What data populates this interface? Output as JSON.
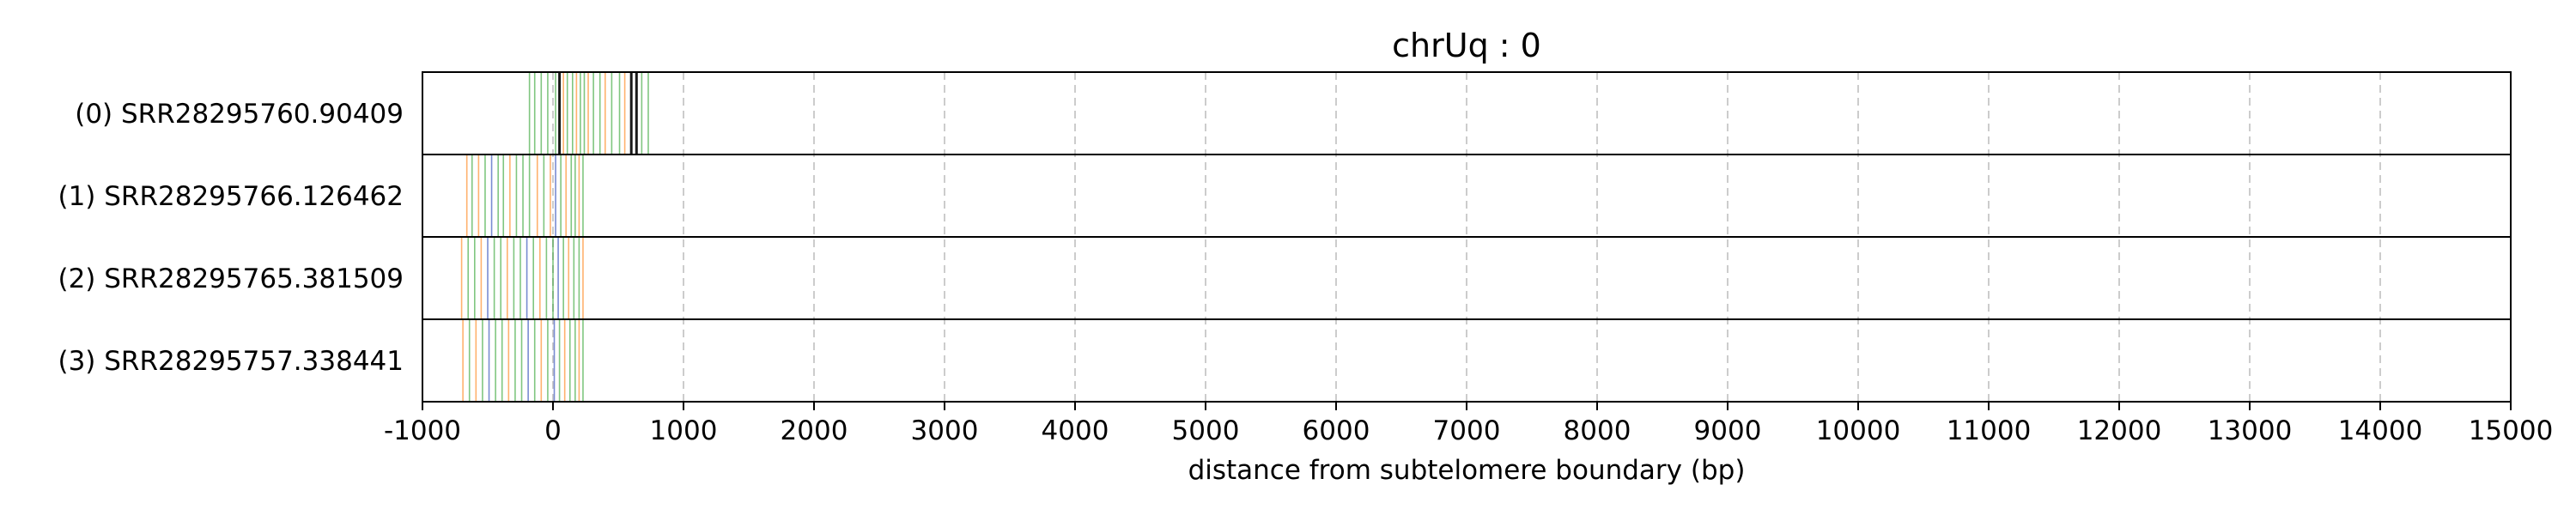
{
  "chart_data": {
    "type": "event-track",
    "title": "chrUq : 0",
    "xlabel": "distance from subtelomere boundary (bp)",
    "xlim": [
      -1000,
      15000
    ],
    "x_ticks": [
      -1000,
      0,
      1000,
      2000,
      3000,
      4000,
      5000,
      6000,
      7000,
      8000,
      9000,
      10000,
      11000,
      12000,
      13000,
      14000,
      15000
    ],
    "grid": "vertical dashed",
    "colors": {
      "green": "#2ca02c",
      "orange": "#ff7f0e",
      "blue": "#1f3fb4",
      "black": "#000000",
      "grid": "#cccccc"
    },
    "tracks": [
      {
        "label": "(0) SRR28295760.90409",
        "events": [
          {
            "x": -180,
            "c": "green"
          },
          {
            "x": -140,
            "c": "green"
          },
          {
            "x": -90,
            "c": "green"
          },
          {
            "x": -40,
            "c": "green"
          },
          {
            "x": 20,
            "c": "green"
          },
          {
            "x": 50,
            "c": "black"
          },
          {
            "x": 80,
            "c": "orange"
          },
          {
            "x": 110,
            "c": "green"
          },
          {
            "x": 150,
            "c": "green"
          },
          {
            "x": 180,
            "c": "orange"
          },
          {
            "x": 210,
            "c": "green"
          },
          {
            "x": 240,
            "c": "green"
          },
          {
            "x": 270,
            "c": "orange"
          },
          {
            "x": 310,
            "c": "green"
          },
          {
            "x": 360,
            "c": "green"
          },
          {
            "x": 400,
            "c": "orange"
          },
          {
            "x": 450,
            "c": "green"
          },
          {
            "x": 510,
            "c": "green"
          },
          {
            "x": 550,
            "c": "orange"
          },
          {
            "x": 600,
            "c": "black"
          },
          {
            "x": 640,
            "c": "black"
          },
          {
            "x": 680,
            "c": "green"
          },
          {
            "x": 730,
            "c": "green"
          }
        ]
      },
      {
        "label": "(1) SRR28295766.126462",
        "events": [
          {
            "x": -660,
            "c": "orange"
          },
          {
            "x": -620,
            "c": "green"
          },
          {
            "x": -570,
            "c": "orange"
          },
          {
            "x": -520,
            "c": "green"
          },
          {
            "x": -470,
            "c": "blue"
          },
          {
            "x": -420,
            "c": "green"
          },
          {
            "x": -380,
            "c": "green"
          },
          {
            "x": -330,
            "c": "orange"
          },
          {
            "x": -280,
            "c": "green"
          },
          {
            "x": -230,
            "c": "green"
          },
          {
            "x": -180,
            "c": "green"
          },
          {
            "x": -120,
            "c": "orange"
          },
          {
            "x": -70,
            "c": "green"
          },
          {
            "x": -20,
            "c": "orange"
          },
          {
            "x": 20,
            "c": "blue"
          },
          {
            "x": 60,
            "c": "green"
          },
          {
            "x": 100,
            "c": "orange"
          },
          {
            "x": 140,
            "c": "green"
          },
          {
            "x": 170,
            "c": "green"
          },
          {
            "x": 200,
            "c": "orange"
          },
          {
            "x": 230,
            "c": "green"
          }
        ]
      },
      {
        "label": "(2) SRR28295765.381509",
        "events": [
          {
            "x": -700,
            "c": "orange"
          },
          {
            "x": -650,
            "c": "green"
          },
          {
            "x": -600,
            "c": "green"
          },
          {
            "x": -550,
            "c": "orange"
          },
          {
            "x": -500,
            "c": "blue"
          },
          {
            "x": -450,
            "c": "green"
          },
          {
            "x": -400,
            "c": "green"
          },
          {
            "x": -350,
            "c": "orange"
          },
          {
            "x": -300,
            "c": "green"
          },
          {
            "x": -250,
            "c": "green"
          },
          {
            "x": -200,
            "c": "blue"
          },
          {
            "x": -150,
            "c": "green"
          },
          {
            "x": -100,
            "c": "orange"
          },
          {
            "x": -50,
            "c": "green"
          },
          {
            "x": 0,
            "c": "green"
          },
          {
            "x": 40,
            "c": "blue"
          },
          {
            "x": 80,
            "c": "green"
          },
          {
            "x": 120,
            "c": "orange"
          },
          {
            "x": 160,
            "c": "green"
          },
          {
            "x": 200,
            "c": "green"
          },
          {
            "x": 230,
            "c": "orange"
          }
        ]
      },
      {
        "label": "(3) SRR28295757.338441",
        "events": [
          {
            "x": -690,
            "c": "orange"
          },
          {
            "x": -640,
            "c": "green"
          },
          {
            "x": -590,
            "c": "orange"
          },
          {
            "x": -540,
            "c": "green"
          },
          {
            "x": -490,
            "c": "blue"
          },
          {
            "x": -440,
            "c": "green"
          },
          {
            "x": -390,
            "c": "green"
          },
          {
            "x": -340,
            "c": "orange"
          },
          {
            "x": -290,
            "c": "green"
          },
          {
            "x": -240,
            "c": "green"
          },
          {
            "x": -190,
            "c": "blue"
          },
          {
            "x": -140,
            "c": "green"
          },
          {
            "x": -90,
            "c": "orange"
          },
          {
            "x": -40,
            "c": "green"
          },
          {
            "x": 10,
            "c": "blue"
          },
          {
            "x": 50,
            "c": "green"
          },
          {
            "x": 90,
            "c": "orange"
          },
          {
            "x": 130,
            "c": "green"
          },
          {
            "x": 170,
            "c": "green"
          },
          {
            "x": 200,
            "c": "orange"
          },
          {
            "x": 230,
            "c": "green"
          }
        ]
      }
    ]
  }
}
